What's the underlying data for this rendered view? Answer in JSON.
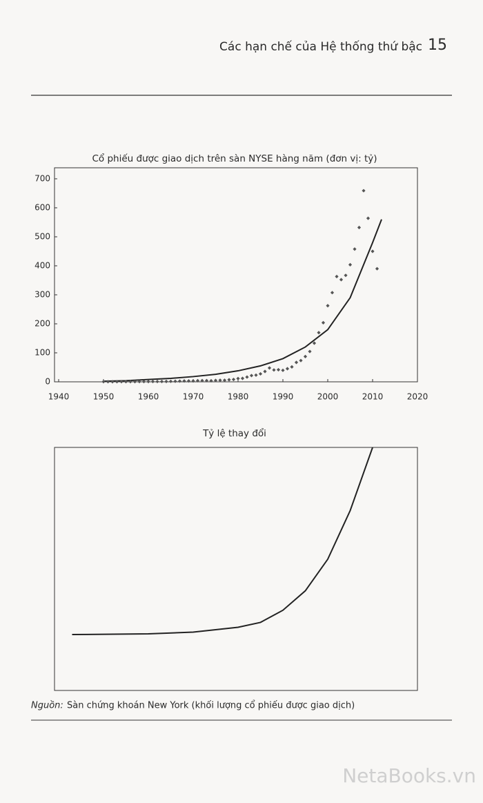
{
  "header": {
    "title": "Các hạn chế của Hệ thống thứ bậc",
    "page_number": "15"
  },
  "chart_data": [
    {
      "type": "scatter",
      "title": "Cổ phiếu được giao dịch trên sàn NYSE hàng năm (đơn vị: tỷ)",
      "points": {
        "color": "#555555",
        "x": [
          1950,
          1951,
          1952,
          1953,
          1954,
          1955,
          1956,
          1957,
          1958,
          1959,
          1960,
          1961,
          1962,
          1963,
          1964,
          1965,
          1966,
          1967,
          1968,
          1969,
          1970,
          1971,
          1972,
          1973,
          1974,
          1975,
          1976,
          1977,
          1978,
          1979,
          1980,
          1981,
          1982,
          1983,
          1984,
          1985,
          1986,
          1987,
          1988,
          1989,
          1990,
          1991,
          1992,
          1993,
          1994,
          1995,
          1996,
          1997,
          1998,
          1999,
          2000,
          2001,
          2002,
          2003,
          2004,
          2005,
          2006,
          2007,
          2008,
          2009,
          2010,
          2011
        ],
        "values": [
          0.5,
          0.4,
          0.3,
          0.4,
          0.6,
          0.6,
          0.6,
          0.6,
          0.7,
          0.8,
          0.8,
          1.0,
          1.0,
          1.1,
          1.2,
          1.6,
          1.9,
          2.5,
          2.9,
          2.9,
          2.9,
          3.9,
          4.1,
          4.1,
          3.5,
          4.7,
          5.4,
          5.3,
          7.2,
          8.2,
          11.4,
          11.9,
          16.5,
          21.6,
          23.1,
          27.5,
          35.7,
          47.8,
          40.9,
          41.7,
          39.7,
          45.3,
          51.4,
          66.9,
          73.4,
          87.2,
          104.6,
          133.3,
          169.7,
          203.9,
          262.5,
          307.5,
          363.1,
          352.4,
          367.1,
          403.8,
          457.6,
          532.0,
          659.0,
          564.0,
          450.0,
          390.0
        ]
      },
      "trend": {
        "color": "#222222",
        "x": [
          1950,
          1955,
          1960,
          1965,
          1970,
          1975,
          1980,
          1985,
          1990,
          1995,
          2000,
          2005,
          2010,
          2012
        ],
        "values": [
          2,
          4,
          8,
          12,
          18,
          26,
          38,
          55,
          80,
          120,
          180,
          290,
          480,
          560
        ]
      },
      "xlim": [
        1940,
        2020
      ],
      "xticks": [
        1940,
        1950,
        1960,
        1970,
        1980,
        1990,
        2000,
        2010,
        2020
      ],
      "ylim": [
        0,
        738
      ],
      "yticks": [
        0,
        100,
        200,
        300,
        400,
        500,
        600,
        700
      ]
    },
    {
      "type": "line",
      "title": "Tỷ lệ thay đổi",
      "color": "#222222",
      "x": [
        1943,
        1960,
        1970,
        1980,
        1985,
        1990,
        1995,
        2000,
        2005,
        2010
      ],
      "values": [
        23,
        23.3,
        24,
        26,
        28,
        33,
        41,
        54,
        74,
        100
      ],
      "xlim": [
        1940,
        2020
      ],
      "ylim": [
        0,
        100
      ]
    }
  ],
  "source": {
    "label": "Nguồn:",
    "text": "Sàn chứng khoán New York (khối lượng cổ phiếu được giao dịch)"
  },
  "watermark": "NetaBooks.vn"
}
